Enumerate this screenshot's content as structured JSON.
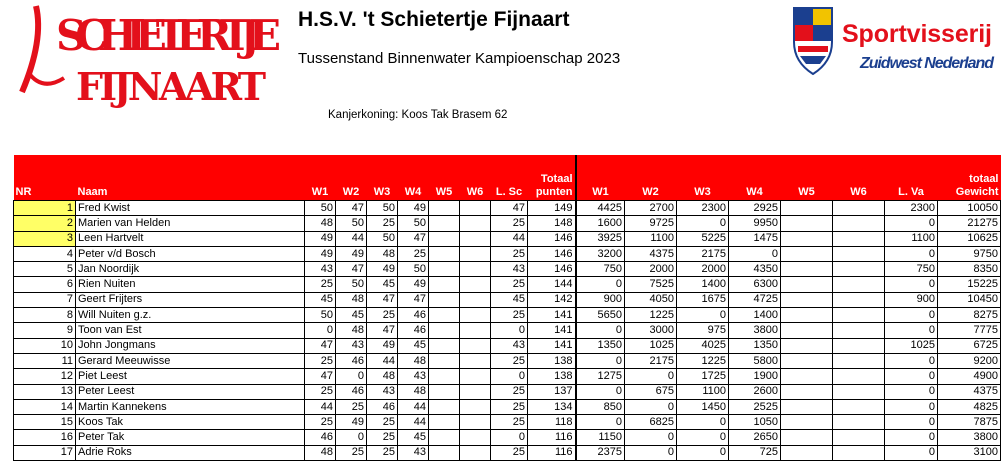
{
  "header": {
    "logo_left_text_top": "SCHIETERTJE",
    "logo_left_text_bottom": "FIJNAART",
    "title": "H.S.V. 't Schietertje Fijnaart",
    "subtitle": "Tussenstand Binnenwater Kampioenschap 2023",
    "kanjer": "Kanjerkoning: Koos Tak Brasem 62",
    "logo_right_line1": "Sportvisserij",
    "logo_right_line2": "Zuidwest Nederland"
  },
  "colors": {
    "header_bg": "#ff0000",
    "highlight": "#ffff66",
    "logo_red": "#e3101b",
    "logo_blue": "#1b3f8f"
  },
  "columns": [
    "NR",
    "Naam",
    "W1",
    "W2",
    "W3",
    "W4",
    "W5",
    "W6",
    "L. Sc",
    "Totaal punten",
    "W1",
    "W2",
    "W3",
    "W4",
    "W5",
    "W6",
    "L. Va",
    "totaal Gewicht"
  ],
  "header_labels": {
    "nr": "NR",
    "naam": "Naam",
    "w1": "W1",
    "w2": "W2",
    "w3": "W3",
    "w4": "W4",
    "w5": "W5",
    "w6": "W6",
    "lsc": "L. Sc",
    "totaal_top": "Totaal",
    "totaal_bottom": "punten",
    "gw1": "W1",
    "gw2": "W2",
    "gw3": "W3",
    "gw4": "W4",
    "gw5": "W5",
    "gw6": "W6",
    "lva": "L. Va",
    "gewicht_top": "totaal",
    "gewicht_bottom": "Gewicht"
  },
  "rows": [
    [
      "1",
      "Fred Kwist",
      "50",
      "47",
      "50",
      "49",
      "",
      "",
      "47",
      "149",
      "4425",
      "2700",
      "2300",
      "2925",
      "",
      "",
      "2300",
      "10050"
    ],
    [
      "2",
      "Marien van Helden",
      "48",
      "50",
      "25",
      "50",
      "",
      "",
      "25",
      "148",
      "1600",
      "9725",
      "0",
      "9950",
      "",
      "",
      "0",
      "21275"
    ],
    [
      "3",
      "Leen Hartvelt",
      "49",
      "44",
      "50",
      "47",
      "",
      "",
      "44",
      "146",
      "3925",
      "1100",
      "5225",
      "1475",
      "",
      "",
      "1100",
      "10625"
    ],
    [
      "4",
      "Peter v/d Bosch",
      "49",
      "49",
      "48",
      "25",
      "",
      "",
      "25",
      "146",
      "3200",
      "4375",
      "2175",
      "0",
      "",
      "",
      "0",
      "9750"
    ],
    [
      "5",
      "Jan Noordijk",
      "43",
      "47",
      "49",
      "50",
      "",
      "",
      "43",
      "146",
      "750",
      "2000",
      "2000",
      "4350",
      "",
      "",
      "750",
      "8350"
    ],
    [
      "6",
      "Rien Nuiten",
      "25",
      "50",
      "45",
      "49",
      "",
      "",
      "25",
      "144",
      "0",
      "7525",
      "1400",
      "6300",
      "",
      "",
      "0",
      "15225"
    ],
    [
      "7",
      "Geert Frijters",
      "45",
      "48",
      "47",
      "47",
      "",
      "",
      "45",
      "142",
      "900",
      "4050",
      "1675",
      "4725",
      "",
      "",
      "900",
      "10450"
    ],
    [
      "8",
      "Will Nuiten g.z.",
      "50",
      "45",
      "25",
      "46",
      "",
      "",
      "25",
      "141",
      "5650",
      "1225",
      "0",
      "1400",
      "",
      "",
      "0",
      "8275"
    ],
    [
      "9",
      "Toon van Est",
      "0",
      "48",
      "47",
      "46",
      "",
      "",
      "0",
      "141",
      "0",
      "3000",
      "975",
      "3800",
      "",
      "",
      "0",
      "7775"
    ],
    [
      "10",
      "John Jongmans",
      "47",
      "43",
      "49",
      "45",
      "",
      "",
      "43",
      "141",
      "1350",
      "1025",
      "4025",
      "1350",
      "",
      "",
      "1025",
      "6725"
    ],
    [
      "11",
      "Gerard Meeuwisse",
      "25",
      "46",
      "44",
      "48",
      "",
      "",
      "25",
      "138",
      "0",
      "2175",
      "1225",
      "5800",
      "",
      "",
      "0",
      "9200"
    ],
    [
      "12",
      "Piet Leest",
      "47",
      "0",
      "48",
      "43",
      "",
      "",
      "0",
      "138",
      "1275",
      "0",
      "1725",
      "1900",
      "",
      "",
      "0",
      "4900"
    ],
    [
      "13",
      "Peter Leest",
      "25",
      "46",
      "43",
      "48",
      "",
      "",
      "25",
      "137",
      "0",
      "675",
      "1100",
      "2600",
      "",
      "",
      "0",
      "4375"
    ],
    [
      "14",
      "Martin Kannekens",
      "44",
      "25",
      "46",
      "44",
      "",
      "",
      "25",
      "134",
      "850",
      "0",
      "1450",
      "2525",
      "",
      "",
      "0",
      "4825"
    ],
    [
      "15",
      "Koos Tak",
      "25",
      "49",
      "25",
      "44",
      "",
      "",
      "25",
      "118",
      "0",
      "6825",
      "0",
      "1050",
      "",
      "",
      "0",
      "7875"
    ],
    [
      "16",
      "Peter Tak",
      "46",
      "0",
      "25",
      "45",
      "",
      "",
      "0",
      "116",
      "1150",
      "0",
      "0",
      "2650",
      "",
      "",
      "0",
      "3800"
    ],
    [
      "17",
      "Adrie Roks",
      "48",
      "25",
      "25",
      "43",
      "",
      "",
      "25",
      "116",
      "2375",
      "0",
      "0",
      "725",
      "",
      "",
      "0",
      "3100"
    ]
  ]
}
